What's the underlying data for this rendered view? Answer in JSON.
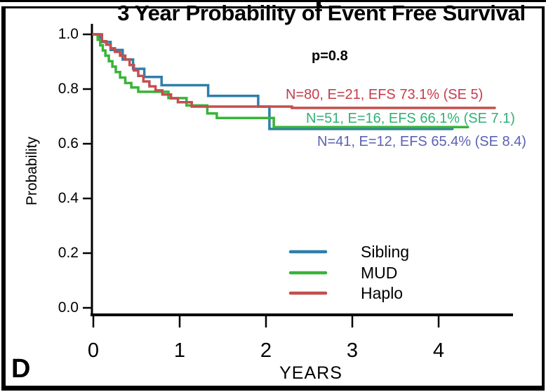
{
  "panel": {
    "label": "D"
  },
  "chart_data": {
    "type": "line",
    "variant": "kaplan-meier-step-curves",
    "title": "3 Year Probability of Event Free Survival",
    "xlabel": "YEARS",
    "ylabel": "Probability",
    "pvalue_label": "p=0.8",
    "xlim": [
      0,
      4.85
    ],
    "ylim": [
      0.0,
      1.0
    ],
    "xticks": [
      0,
      1,
      2,
      3,
      4
    ],
    "ytick_labels": [
      "1.0",
      "0.8",
      "0.6",
      "0.4",
      "0.2",
      "0.0"
    ],
    "yticks": [
      1.0,
      0.8,
      0.6,
      0.4,
      0.2,
      0.0
    ],
    "grid": false,
    "legend": {
      "position": "lower-center",
      "entries": [
        {
          "label": "Sibling",
          "color": "#2e7fa9"
        },
        {
          "label": "MUD",
          "color": "#38b438"
        },
        {
          "label": "Haplo",
          "color": "#c44e4e"
        }
      ]
    },
    "annotations": [
      {
        "text": "N=80, E=21, EFS 73.1% (SE 5)",
        "color": "#c63b4b",
        "series": "Haplo"
      },
      {
        "text": "N=51, E=16, EFS 66.1% (SE 7.1)",
        "color": "#30b175",
        "series": "MUD"
      },
      {
        "text": "N=41, E=12, EFS 65.4% (SE 8.4)",
        "color": "#5a62b2",
        "series": "Sibling"
      }
    ],
    "series": [
      {
        "name": "Sibling",
        "color": "#2e7fa9",
        "n": 41,
        "events": 12,
        "efs_pct": 65.4,
        "se": 8.4,
        "points": [
          [
            0,
            1.0
          ],
          [
            0.08,
            0.972
          ],
          [
            0.2,
            0.943
          ],
          [
            0.34,
            0.908
          ],
          [
            0.46,
            0.874
          ],
          [
            0.59,
            0.844
          ],
          [
            0.79,
            0.814
          ],
          [
            1.33,
            0.775
          ],
          [
            1.91,
            0.736
          ],
          [
            2.04,
            0.654
          ],
          [
            4.16,
            0.654
          ]
        ]
      },
      {
        "name": "MUD",
        "color": "#38b438",
        "n": 51,
        "events": 16,
        "efs_pct": 66.1,
        "se": 7.1,
        "points": [
          [
            0,
            1.0
          ],
          [
            0.05,
            0.98
          ],
          [
            0.08,
            0.96
          ],
          [
            0.11,
            0.941
          ],
          [
            0.14,
            0.922
          ],
          [
            0.18,
            0.902
          ],
          [
            0.22,
            0.882
          ],
          [
            0.26,
            0.862
          ],
          [
            0.31,
            0.842
          ],
          [
            0.37,
            0.822
          ],
          [
            0.44,
            0.806
          ],
          [
            0.52,
            0.79
          ],
          [
            0.87,
            0.767
          ],
          [
            1.08,
            0.74
          ],
          [
            1.32,
            0.711
          ],
          [
            1.43,
            0.694
          ],
          [
            2.09,
            0.661
          ],
          [
            4.34,
            0.661
          ]
        ]
      },
      {
        "name": "Haplo",
        "color": "#c44e4e",
        "n": 80,
        "events": 21,
        "efs_pct": 73.1,
        "se": 5,
        "points": [
          [
            0,
            1.0
          ],
          [
            0.1,
            0.975
          ],
          [
            0.15,
            0.962
          ],
          [
            0.2,
            0.949
          ],
          [
            0.25,
            0.936
          ],
          [
            0.31,
            0.922
          ],
          [
            0.37,
            0.908
          ],
          [
            0.42,
            0.888
          ],
          [
            0.47,
            0.868
          ],
          [
            0.52,
            0.848
          ],
          [
            0.58,
            0.828
          ],
          [
            0.65,
            0.81
          ],
          [
            0.72,
            0.795
          ],
          [
            0.8,
            0.78
          ],
          [
            0.9,
            0.766
          ],
          [
            0.98,
            0.752
          ],
          [
            1.14,
            0.736
          ],
          [
            2.3,
            0.731
          ],
          [
            4.65,
            0.731
          ]
        ]
      }
    ]
  }
}
